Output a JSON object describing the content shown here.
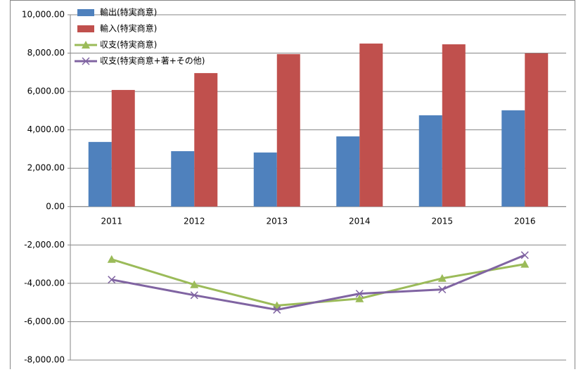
{
  "chart_data": {
    "type": "bar-line",
    "categories": [
      "2011",
      "2012",
      "2013",
      "2014",
      "2015",
      "2016"
    ],
    "series": [
      {
        "name": "輸出(特実商意)",
        "type": "bar",
        "color": "#4f81bd",
        "values": [
          3370,
          2890,
          2820,
          3660,
          4760,
          5020
        ]
      },
      {
        "name": "輸入(特実商意)",
        "type": "bar",
        "color": "#c0504d",
        "values": [
          6080,
          6960,
          7950,
          8500,
          8460,
          7990
        ]
      },
      {
        "name": "収支(特実商意)",
        "type": "line",
        "marker": "triangle",
        "color": "#9bbb59",
        "values": [
          -2750,
          -4070,
          -5160,
          -4800,
          -3740,
          -3000
        ]
      },
      {
        "name": "収支(特実商意+著+その他)",
        "type": "line",
        "marker": "x",
        "color": "#8064a2",
        "values": [
          -3810,
          -4620,
          -5380,
          -4540,
          -4320,
          -2530
        ]
      }
    ],
    "ylim": [
      -8000,
      10000
    ],
    "yticks": [
      {
        "value": -8000,
        "label": "-8,000.00"
      },
      {
        "value": -6000,
        "label": "-6,000.00"
      },
      {
        "value": -4000,
        "label": "-4,000.00"
      },
      {
        "value": -2000,
        "label": "-2,000.00"
      },
      {
        "value": 0,
        "label": "0.00"
      },
      {
        "value": 2000,
        "label": "2,000.00"
      },
      {
        "value": 4000,
        "label": "4,000.00"
      },
      {
        "value": 6000,
        "label": "6,000.00"
      },
      {
        "value": 8000,
        "label": "8,000.00"
      },
      {
        "value": 10000,
        "label": "10,000.00"
      }
    ],
    "grid": true,
    "legend": "top-left"
  }
}
